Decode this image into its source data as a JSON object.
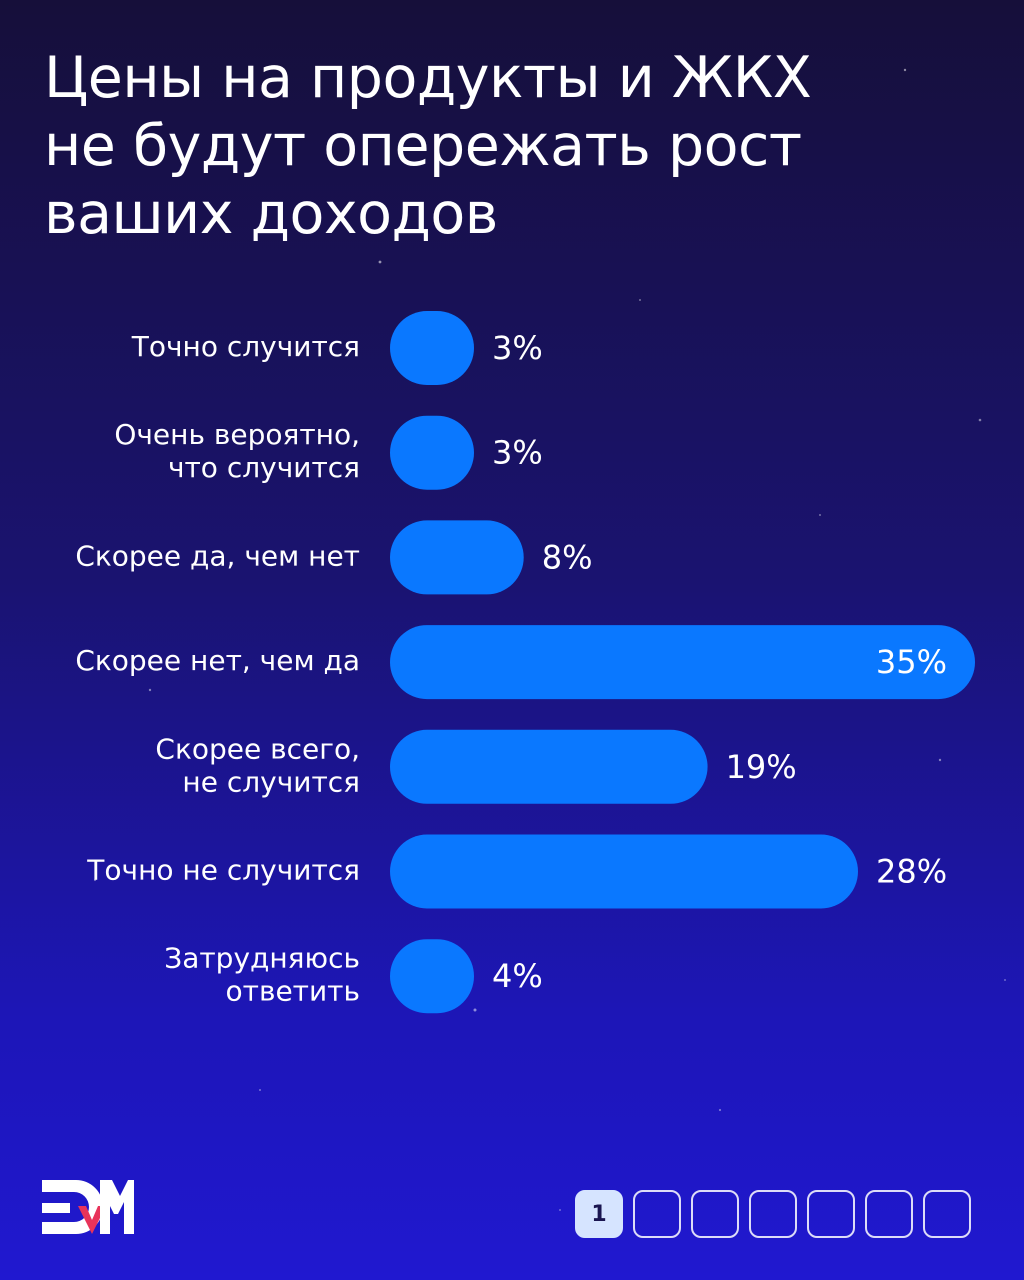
{
  "title_lines": [
    "Цены на продукты и ЖКХ",
    "не будут опережать рост",
    "ваших доходов"
  ],
  "colors": {
    "bar": "#0a78ff",
    "text": "#ffffff",
    "background_top": "#160f3a",
    "background_bottom": "#2018d0",
    "logo_accent": "#e8335a",
    "pager_active_bg": "#d6e4ff"
  },
  "chart_data": {
    "type": "bar",
    "orientation": "horizontal",
    "title": "Цены на продукты и ЖКХ не будут опережать рост ваших доходов",
    "categories": [
      [
        "Точно случится"
      ],
      [
        "Очень вероятно,",
        "что случится"
      ],
      [
        "Скорее да, чем нет"
      ],
      [
        "Скорее нет, чем да"
      ],
      [
        "Скорее всего,",
        "не случится"
      ],
      [
        "Точно не случится"
      ],
      [
        "Затрудняюсь",
        "ответить"
      ]
    ],
    "values": [
      3,
      3,
      8,
      35,
      19,
      28,
      4
    ],
    "value_labels": [
      "3%",
      "3%",
      "8%",
      "35%",
      "19%",
      "28%",
      "4%"
    ],
    "xlim": [
      0,
      35
    ],
    "grid": false,
    "legend": "none"
  },
  "pager": {
    "pages": [
      "1",
      "",
      "",
      "",
      "",
      "",
      ""
    ],
    "active_index": 0
  },
  "logo": {
    "icon": "brand-logo-icon"
  }
}
